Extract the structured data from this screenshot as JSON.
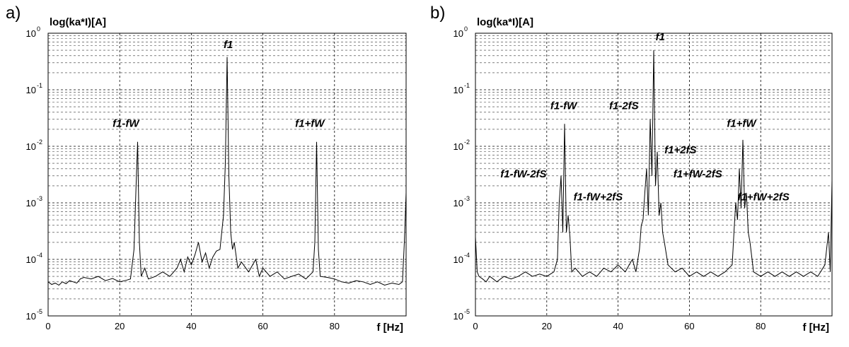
{
  "chart_data": [
    {
      "type": "line",
      "panel": "a)",
      "ylabel": "log(ka*I)[A]",
      "xlabel": "f [Hz]",
      "log_y": true,
      "grid": true,
      "color": "#000000",
      "xlim": [
        0,
        100
      ],
      "xticks": [
        0,
        20,
        40,
        60,
        80
      ],
      "ylim": [
        1e-05,
        1
      ],
      "yticks": [
        {
          "value": 1e-05,
          "label": "10",
          "exponent": "-5"
        },
        {
          "value": 0.0001,
          "label": "10",
          "exponent": "-4"
        },
        {
          "value": 0.001,
          "label": "10",
          "exponent": "-3"
        },
        {
          "value": 0.01,
          "label": "10",
          "exponent": "-2"
        },
        {
          "value": 0.1,
          "label": "10",
          "exponent": "-1"
        },
        {
          "value": 1,
          "label": "10",
          "exponent": "0"
        }
      ],
      "yminorticks": [
        2e-05,
        3e-05,
        4e-05,
        5e-05,
        6e-05,
        7e-05,
        8e-05,
        9e-05,
        0.0002,
        0.0003,
        0.0004,
        0.0005,
        0.0006,
        0.0007,
        0.0008,
        0.0009,
        0.002,
        0.003,
        0.004,
        0.005,
        0.006,
        0.007,
        0.008,
        0.009,
        0.02,
        0.03,
        0.04,
        0.05,
        0.06,
        0.07,
        0.08,
        0.09,
        0.2,
        0.3,
        0.4,
        0.5,
        0.6,
        0.7,
        0.8,
        0.9
      ],
      "annotations": [
        "f1",
        "f1-fW",
        "f1+fW"
      ],
      "x": [
        0,
        1,
        2,
        3,
        4,
        5,
        6,
        7,
        8,
        9,
        10,
        12,
        14,
        16,
        18,
        20,
        22,
        23,
        24,
        24.5,
        25,
        25.5,
        26,
        27,
        28,
        30,
        32,
        34,
        36,
        37,
        38,
        39,
        40,
        41,
        42,
        43,
        44,
        45,
        46,
        47,
        48,
        48.5,
        49,
        49.5,
        50,
        50.5,
        51,
        51.5,
        52,
        53,
        54,
        56,
        58,
        59,
        60,
        62,
        64,
        66,
        68,
        70,
        72,
        74,
        74.5,
        75,
        75.5,
        76,
        78,
        80,
        82,
        84,
        86,
        88,
        90,
        92,
        94,
        96,
        98,
        99,
        99.5,
        100
      ],
      "values": [
        4e-05,
        3.6e-05,
        3.8e-05,
        3.5e-05,
        4e-05,
        3.7e-05,
        4.2e-05,
        4e-05,
        3.8e-05,
        4.5e-05,
        4.8e-05,
        4.5e-05,
        5e-05,
        4.2e-05,
        4.6e-05,
        4e-05,
        4.3e-05,
        4.5e-05,
        0.00015,
        0.0015,
        0.012,
        0.0002,
        5e-05,
        7e-05,
        4.5e-05,
        5e-05,
        6e-05,
        5e-05,
        7e-05,
        0.0001,
        6e-05,
        0.00011,
        8e-05,
        0.00012,
        0.0002,
        9e-05,
        0.00013,
        7e-05,
        0.00011,
        0.00014,
        0.00015,
        0.0003,
        0.0006,
        0.005,
        0.38,
        0.003,
        0.0003,
        0.00015,
        0.0002,
        7e-05,
        9e-05,
        6e-05,
        0.0001,
        5e-05,
        7e-05,
        5e-05,
        6e-05,
        4.5e-05,
        5e-05,
        5.5e-05,
        4.5e-05,
        6e-05,
        0.0002,
        0.012,
        0.00015,
        5e-05,
        4.8e-05,
        4.5e-05,
        4e-05,
        3.8e-05,
        4.2e-05,
        4e-05,
        3.6e-05,
        4e-05,
        3.5e-05,
        3.8e-05,
        3.6e-05,
        4e-05,
        0.0002,
        0.0015
      ]
    },
    {
      "type": "line",
      "panel": "b)",
      "ylabel": "log(ka*I)[A]",
      "xlabel": "f [Hz]",
      "log_y": true,
      "grid": true,
      "color": "#000000",
      "xlim": [
        0,
        100
      ],
      "xticks": [
        0,
        20,
        40,
        60,
        80
      ],
      "ylim": [
        1e-05,
        1
      ],
      "yticks": [
        {
          "value": 1e-05,
          "label": "10",
          "exponent": "-5"
        },
        {
          "value": 0.0001,
          "label": "10",
          "exponent": "-4"
        },
        {
          "value": 0.001,
          "label": "10",
          "exponent": "-3"
        },
        {
          "value": 0.01,
          "label": "10",
          "exponent": "-2"
        },
        {
          "value": 0.1,
          "label": "10",
          "exponent": "-1"
        },
        {
          "value": 1,
          "label": "10",
          "exponent": "0"
        }
      ],
      "yminorticks": [
        2e-05,
        3e-05,
        4e-05,
        5e-05,
        6e-05,
        7e-05,
        8e-05,
        9e-05,
        0.0002,
        0.0003,
        0.0004,
        0.0005,
        0.0006,
        0.0007,
        0.0008,
        0.0009,
        0.002,
        0.003,
        0.004,
        0.005,
        0.006,
        0.007,
        0.008,
        0.009,
        0.02,
        0.03,
        0.04,
        0.05,
        0.06,
        0.07,
        0.08,
        0.09,
        0.2,
        0.3,
        0.4,
        0.5,
        0.6,
        0.7,
        0.8,
        0.9
      ],
      "annotations": [
        "f1",
        "f1-fW",
        "f1-2fS",
        "f1+fW",
        "f1+2fS",
        "f1-fW-2fS",
        "f1+fW-2fS",
        "f1-fW+2fS",
        "f1+fW+2fS"
      ],
      "x": [
        0,
        0.5,
        1,
        2,
        3,
        4,
        5,
        6,
        8,
        10,
        12,
        14,
        16,
        18,
        20,
        22,
        23,
        23.5,
        24,
        24.5,
        25,
        25.5,
        26,
        26.5,
        27,
        28,
        30,
        32,
        34,
        36,
        38,
        40,
        42,
        44,
        45,
        46,
        46.5,
        47,
        47.5,
        48,
        48.5,
        49,
        49.5,
        50,
        50.5,
        51,
        51.5,
        52,
        52.5,
        53,
        54,
        56,
        58,
        60,
        62,
        64,
        66,
        68,
        70,
        72,
        72.5,
        73,
        73.5,
        74,
        74.5,
        75,
        75.5,
        76,
        76.5,
        77,
        78,
        80,
        82,
        84,
        86,
        88,
        90,
        92,
        94,
        96,
        98,
        99,
        99.5,
        100
      ],
      "values": [
        0.00025,
        6e-05,
        5e-05,
        4.5e-05,
        4e-05,
        5e-05,
        4.5e-05,
        4e-05,
        5e-05,
        4.5e-05,
        5e-05,
        6e-05,
        5e-05,
        5.5e-05,
        5e-05,
        6e-05,
        0.0001,
        0.001,
        0.003,
        0.0003,
        0.025,
        0.0003,
        0.0006,
        0.00025,
        6e-05,
        7e-05,
        5e-05,
        6e-05,
        5e-05,
        7e-05,
        6e-05,
        8e-05,
        6e-05,
        0.0001,
        6e-05,
        0.00015,
        0.0004,
        0.0005,
        0.0015,
        0.004,
        0.0006,
        0.03,
        0.003,
        0.5,
        0.002,
        0.008,
        0.0006,
        0.001,
        0.0003,
        0.0002,
        8e-05,
        6e-05,
        7e-05,
        5e-05,
        6e-05,
        5e-05,
        6e-05,
        5e-05,
        6e-05,
        8e-05,
        0.0003,
        0.001,
        0.0005,
        0.004,
        0.0008,
        0.013,
        0.0008,
        0.0015,
        0.0003,
        0.0002,
        6e-05,
        5e-05,
        6e-05,
        5e-05,
        6e-05,
        5e-05,
        6e-05,
        5e-05,
        6e-05,
        5e-05,
        8e-05,
        0.0003,
        6e-05,
        0.0025
      ]
    }
  ]
}
